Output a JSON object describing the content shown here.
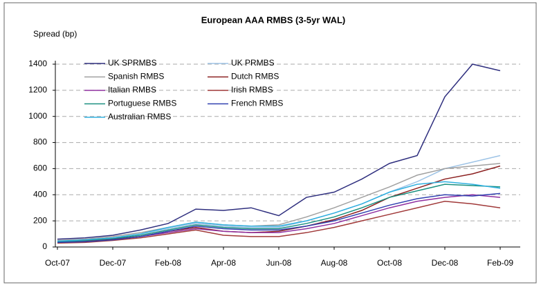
{
  "chart_data": {
    "type": "line",
    "title": "European AAA RMBS (3-5yr WAL)",
    "y_label": "Spread (bp)",
    "x": [
      "Oct-07",
      "Nov-07",
      "Dec-07",
      "Jan-08",
      "Feb-08",
      "Mar-08",
      "Apr-08",
      "May-08",
      "Jun-08",
      "Jul-08",
      "Aug-08",
      "Sep-08",
      "Oct-08",
      "Nov-08",
      "Dec-08",
      "Jan-09",
      "Feb-09"
    ],
    "xticks": [
      "Oct-07",
      "Dec-07",
      "Feb-08",
      "Apr-08",
      "Jun-08",
      "Aug-08",
      "Oct-08",
      "Dec-08",
      "Feb-09"
    ],
    "ylim": [
      0,
      1400
    ],
    "yticks": [
      0,
      200,
      400,
      600,
      800,
      1000,
      1200,
      1400
    ],
    "grid": true,
    "series": [
      {
        "name": "UK SPRMBS",
        "color": "#2e2e7e",
        "values": [
          60,
          70,
          90,
          130,
          180,
          290,
          280,
          300,
          240,
          380,
          420,
          520,
          640,
          700,
          1150,
          1400,
          1350
        ]
      },
      {
        "name": "UK PRMBS",
        "color": "#9dc3e6",
        "values": [
          40,
          50,
          70,
          100,
          140,
          180,
          160,
          150,
          150,
          200,
          260,
          330,
          420,
          500,
          600,
          650,
          700
        ]
      },
      {
        "name": "Spanish RMBS",
        "color": "#a0a0a0",
        "values": [
          50,
          60,
          80,
          110,
          150,
          190,
          170,
          160,
          170,
          230,
          300,
          380,
          460,
          550,
          600,
          620,
          640
        ]
      },
      {
        "name": "Dutch RMBS",
        "color": "#8b2020",
        "values": [
          40,
          45,
          60,
          80,
          120,
          150,
          120,
          110,
          120,
          160,
          210,
          280,
          380,
          450,
          520,
          560,
          620
        ]
      },
      {
        "name": "Italian RMBS",
        "color": "#9030a0",
        "values": [
          35,
          40,
          55,
          80,
          110,
          140,
          120,
          110,
          110,
          140,
          180,
          240,
          300,
          350,
          380,
          400,
          380
        ]
      },
      {
        "name": "Irish RMBS",
        "color": "#a03838",
        "values": [
          30,
          35,
          50,
          70,
          100,
          130,
          90,
          80,
          80,
          110,
          150,
          200,
          250,
          300,
          350,
          330,
          300
        ]
      },
      {
        "name": "Portuguese RMBS",
        "color": "#1a9080",
        "values": [
          40,
          50,
          65,
          90,
          130,
          170,
          150,
          140,
          140,
          180,
          230,
          300,
          380,
          430,
          480,
          470,
          460
        ]
      },
      {
        "name": "French RMBS",
        "color": "#3040b0",
        "values": [
          35,
          40,
          55,
          80,
          120,
          160,
          140,
          130,
          130,
          160,
          200,
          260,
          320,
          370,
          400,
          390,
          410
        ]
      },
      {
        "name": "Australian RMBS",
        "color": "#30b0e0",
        "values": [
          45,
          55,
          70,
          100,
          150,
          190,
          170,
          160,
          160,
          200,
          260,
          330,
          420,
          480,
          500,
          480,
          450
        ]
      }
    ]
  }
}
